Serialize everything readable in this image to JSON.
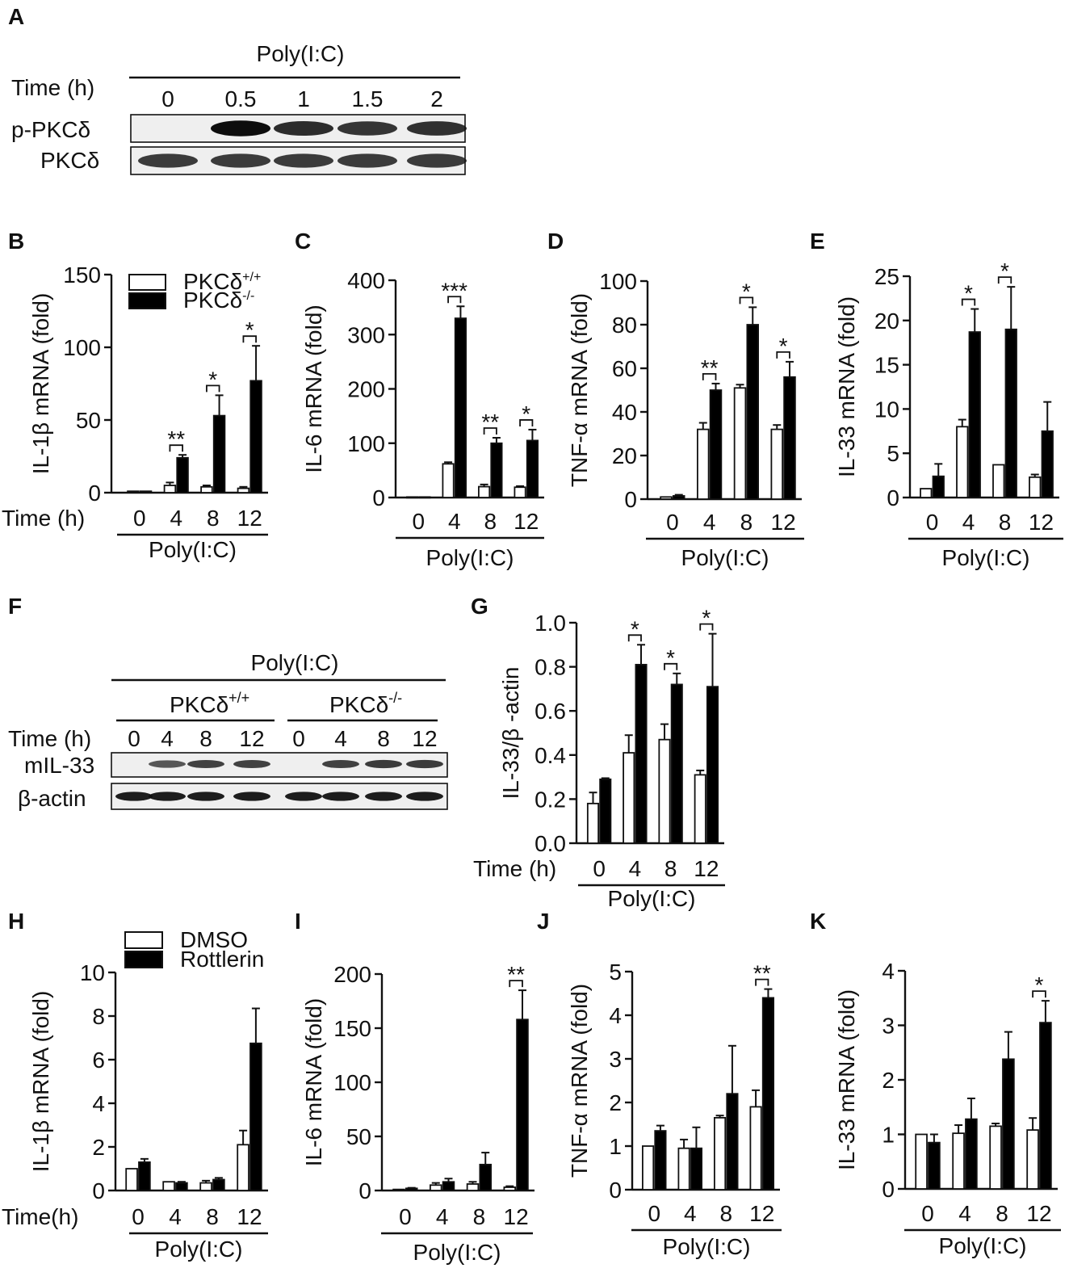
{
  "figure": {
    "panel_letters": [
      "A",
      "B",
      "C",
      "D",
      "E",
      "F",
      "G",
      "H",
      "I",
      "J",
      "K"
    ],
    "colors": {
      "wildtype_fill": "#ffffff",
      "treated_fill": "#000000",
      "axis": "#111111"
    }
  },
  "panel_a": {
    "treatment": "Poly(I:C)",
    "time_label": "Time (h)",
    "timepoints": [
      "0",
      "0.5",
      "1",
      "1.5",
      "2"
    ],
    "rows": [
      {
        "label": "p-PKCδ",
        "intensity": [
          0.0,
          0.95,
          0.75,
          0.7,
          0.72
        ]
      },
      {
        "label": "PKCδ",
        "intensity": [
          0.65,
          0.65,
          0.65,
          0.65,
          0.65
        ]
      }
    ]
  },
  "panel_f": {
    "treatment": "Poly(I:C)",
    "group_wt": "PKCδ",
    "group_wt_sup": "+/+",
    "group_ko": "PKCδ",
    "group_ko_sup": "-/-",
    "time_label": "Time (h)",
    "timepoints": [
      "0",
      "4",
      "8",
      "12",
      "0",
      "4",
      "8",
      "12"
    ],
    "rows": [
      {
        "label": "mIL-33",
        "intensity": [
          0.0,
          0.45,
          0.6,
          0.6,
          0.0,
          0.6,
          0.65,
          0.65
        ]
      },
      {
        "label": "β-actin",
        "intensity": [
          0.85,
          0.85,
          0.85,
          0.85,
          0.85,
          0.85,
          0.85,
          0.85
        ]
      }
    ]
  },
  "chart_data": [
    {
      "id": "B",
      "type": "bar",
      "categories": [
        "0",
        "4",
        "8",
        "12"
      ],
      "ylabel": "IL-1β mRNA (fold)",
      "ylim": [
        0,
        150
      ],
      "yticks": [
        0,
        50,
        100,
        150
      ],
      "time_label": "Time (h)",
      "group_label": "Poly(I:C)",
      "legend": {
        "entries": [
          {
            "name": "PKCδ",
            "sup": "+/+",
            "fill": "#ffffff"
          },
          {
            "name": "PKCδ",
            "sup": "-/-",
            "fill": "#000000"
          }
        ]
      },
      "series": [
        {
          "name": "PKCδ+/+",
          "fill": "#ffffff",
          "values": [
            1,
            5,
            4,
            3
          ],
          "errors": [
            0,
            2,
            1,
            1
          ]
        },
        {
          "name": "PKCδ-/-",
          "fill": "#000000",
          "values": [
            1,
            24,
            53,
            77
          ],
          "errors": [
            0,
            2,
            14,
            24
          ]
        }
      ],
      "significance": [
        "",
        "**",
        "*",
        "*"
      ]
    },
    {
      "id": "C",
      "type": "bar",
      "categories": [
        "0",
        "4",
        "8",
        "12"
      ],
      "ylabel": "IL-6 mRNA (fold)",
      "ylim": [
        0,
        400
      ],
      "yticks": [
        0,
        100,
        200,
        300,
        400
      ],
      "time_label": "",
      "group_label": "Poly(I:C)",
      "series": [
        {
          "name": "PKCδ+/+",
          "fill": "#ffffff",
          "values": [
            1,
            62,
            20,
            19
          ],
          "errors": [
            0,
            3,
            4,
            2
          ]
        },
        {
          "name": "PKCδ-/-",
          "fill": "#000000",
          "values": [
            1,
            330,
            100,
            105
          ],
          "errors": [
            0,
            22,
            10,
            20
          ]
        }
      ],
      "significance": [
        "",
        "***",
        "**",
        "*"
      ]
    },
    {
      "id": "D",
      "type": "bar",
      "categories": [
        "0",
        "4",
        "8",
        "12"
      ],
      "ylabel": "TNF-α mRNA (fold)",
      "ylim": [
        0,
        100
      ],
      "yticks": [
        0,
        20,
        40,
        60,
        80,
        100
      ],
      "time_label": "",
      "group_label": "Poly(I:C)",
      "series": [
        {
          "name": "PKCδ+/+",
          "fill": "#ffffff",
          "values": [
            1,
            32,
            51,
            32
          ],
          "errors": [
            0,
            3,
            1.5,
            2
          ]
        },
        {
          "name": "PKCδ-/-",
          "fill": "#000000",
          "values": [
            1.5,
            50,
            80,
            56
          ],
          "errors": [
            0.5,
            3,
            8,
            7
          ]
        }
      ],
      "significance": [
        "",
        "**",
        "*",
        "*"
      ]
    },
    {
      "id": "E",
      "type": "bar",
      "categories": [
        "0",
        "4",
        "8",
        "12"
      ],
      "ylabel": "IL-33 mRNA (fold)",
      "ylim": [
        0,
        25
      ],
      "yticks": [
        0,
        5,
        10,
        15,
        20,
        25
      ],
      "time_label": "",
      "group_label": "Poly(I:C)",
      "series": [
        {
          "name": "PKCδ+/+",
          "fill": "#ffffff",
          "values": [
            1,
            8,
            3.7,
            2.3
          ],
          "errors": [
            0,
            0.8,
            0,
            0.3
          ]
        },
        {
          "name": "PKCδ-/-",
          "fill": "#000000",
          "values": [
            2.4,
            18.7,
            19,
            7.5
          ],
          "errors": [
            1.4,
            2.6,
            4.8,
            3.3
          ]
        }
      ],
      "significance": [
        "",
        "*",
        "*",
        ""
      ]
    },
    {
      "id": "G",
      "type": "bar",
      "categories": [
        "0",
        "4",
        "8",
        "12"
      ],
      "ylabel": "IL-33/β -actin",
      "ylim": [
        0,
        1.0
      ],
      "yticks": [
        "0.0",
        "0.2",
        "0.4",
        "0.6",
        "0.8",
        "1.0"
      ],
      "time_label": "Time (h)",
      "group_label": "Poly(I:C)",
      "series": [
        {
          "name": "PKCδ+/+",
          "fill": "#ffffff",
          "values": [
            0.18,
            0.41,
            0.47,
            0.31
          ],
          "errors": [
            0.05,
            0.08,
            0.07,
            0.02
          ]
        },
        {
          "name": "PKCδ-/-",
          "fill": "#000000",
          "values": [
            0.29,
            0.81,
            0.72,
            0.71
          ],
          "errors": [
            0.005,
            0.09,
            0.05,
            0.24
          ]
        }
      ],
      "significance": [
        "",
        "*",
        "*",
        "*"
      ]
    },
    {
      "id": "H",
      "type": "bar",
      "categories": [
        "0",
        "4",
        "8",
        "12"
      ],
      "ylabel": "IL-1β  mRNA (fold)",
      "ylim": [
        0,
        10
      ],
      "yticks": [
        0,
        2,
        4,
        6,
        8,
        10
      ],
      "time_label": "Time(h)",
      "group_label": "Poly(I:C)",
      "legend": {
        "entries": [
          {
            "name": "DMSO",
            "sup": "",
            "fill": "#ffffff"
          },
          {
            "name": "Rottlerin",
            "sup": "",
            "fill": "#000000"
          }
        ]
      },
      "series": [
        {
          "name": "DMSO",
          "fill": "#ffffff",
          "values": [
            1,
            0.4,
            0.35,
            2.1
          ],
          "errors": [
            0,
            0,
            0.1,
            0.65
          ]
        },
        {
          "name": "Rottlerin",
          "fill": "#000000",
          "values": [
            1.3,
            0.35,
            0.5,
            6.75
          ],
          "errors": [
            0.15,
            0.05,
            0.08,
            1.6
          ]
        }
      ],
      "significance": [
        "",
        "",
        "",
        ""
      ]
    },
    {
      "id": "I",
      "type": "bar",
      "categories": [
        "0",
        "4",
        "8",
        "12"
      ],
      "ylabel": "IL-6 mRNA (fold)",
      "ylim": [
        0,
        200
      ],
      "yticks": [
        0,
        50,
        100,
        150,
        200
      ],
      "time_label": "",
      "group_label": "Poly(I:C)",
      "series": [
        {
          "name": "DMSO",
          "fill": "#ffffff",
          "values": [
            1,
            5,
            6,
            3
          ],
          "errors": [
            0,
            2,
            2,
            1
          ]
        },
        {
          "name": "Rottlerin",
          "fill": "#000000",
          "values": [
            2,
            8,
            24,
            158
          ],
          "errors": [
            0.5,
            3,
            11,
            27
          ]
        }
      ],
      "significance": [
        "",
        "",
        "",
        "**"
      ]
    },
    {
      "id": "J",
      "type": "bar",
      "categories": [
        "0",
        "4",
        "8",
        "12"
      ],
      "ylabel": "TNF-α  mRNA (fold)",
      "ylim": [
        0,
        5
      ],
      "yticks": [
        0,
        1,
        2,
        3,
        4,
        5
      ],
      "time_label": "",
      "group_label": "Poly(I:C)",
      "series": [
        {
          "name": "DMSO",
          "fill": "#ffffff",
          "values": [
            1,
            0.95,
            1.65,
            1.9
          ],
          "errors": [
            0,
            0.2,
            0.05,
            0.38
          ]
        },
        {
          "name": "Rottlerin",
          "fill": "#000000",
          "values": [
            1.35,
            0.95,
            2.2,
            4.4
          ],
          "errors": [
            0.12,
            0.48,
            1.1,
            0.2
          ]
        }
      ],
      "significance": [
        "",
        "",
        "",
        "**"
      ]
    },
    {
      "id": "K",
      "type": "bar",
      "categories": [
        "0",
        "4",
        "8",
        "12"
      ],
      "ylabel": "IL-33 mRNA (fold)",
      "ylim": [
        0,
        4
      ],
      "yticks": [
        0,
        1,
        2,
        3,
        4
      ],
      "time_label": "",
      "group_label": "Poly(I:C)",
      "series": [
        {
          "name": "DMSO",
          "fill": "#ffffff",
          "values": [
            1,
            1.02,
            1.15,
            1.08
          ],
          "errors": [
            0,
            0.15,
            0.05,
            0.22
          ]
        },
        {
          "name": "Rottlerin",
          "fill": "#000000",
          "values": [
            0.85,
            1.28,
            2.38,
            3.05
          ],
          "errors": [
            0.15,
            0.38,
            0.5,
            0.4
          ]
        }
      ],
      "significance": [
        "",
        "",
        "",
        "*"
      ]
    }
  ]
}
